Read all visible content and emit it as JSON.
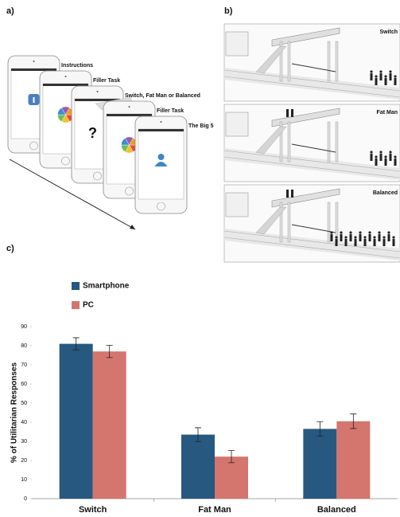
{
  "panel_a": {
    "label": "a)",
    "steps": [
      "Instructions",
      "Filler Task",
      "Switch, Fat Man or Balanced",
      "Filler Task",
      "The Big 5"
    ],
    "question_mark": "?"
  },
  "panel_b": {
    "label": "b)",
    "scenarios": [
      "Switch",
      "Fat Man",
      "Balanced"
    ]
  },
  "panel_c": {
    "label": "c)"
  },
  "chart_data": {
    "type": "bar",
    "y_label": "% of Utilitarian Responses",
    "categories": [
      "Switch",
      "Fat Man",
      "Balanced"
    ],
    "series": [
      {
        "name": "Smartphone",
        "color": "#265880",
        "values": [
          81,
          33.5,
          36.5
        ],
        "errors": [
          3.2,
          3.6,
          3.8
        ]
      },
      {
        "name": "PC",
        "color": "#d4766e",
        "values": [
          77,
          22,
          40.5
        ],
        "errors": [
          3.2,
          3.2,
          3.8
        ]
      }
    ],
    "ylim": [
      0,
      90
    ],
    "yticks": [
      0,
      10,
      20,
      30,
      40,
      50,
      60,
      70,
      80,
      90
    ],
    "grid": false
  }
}
